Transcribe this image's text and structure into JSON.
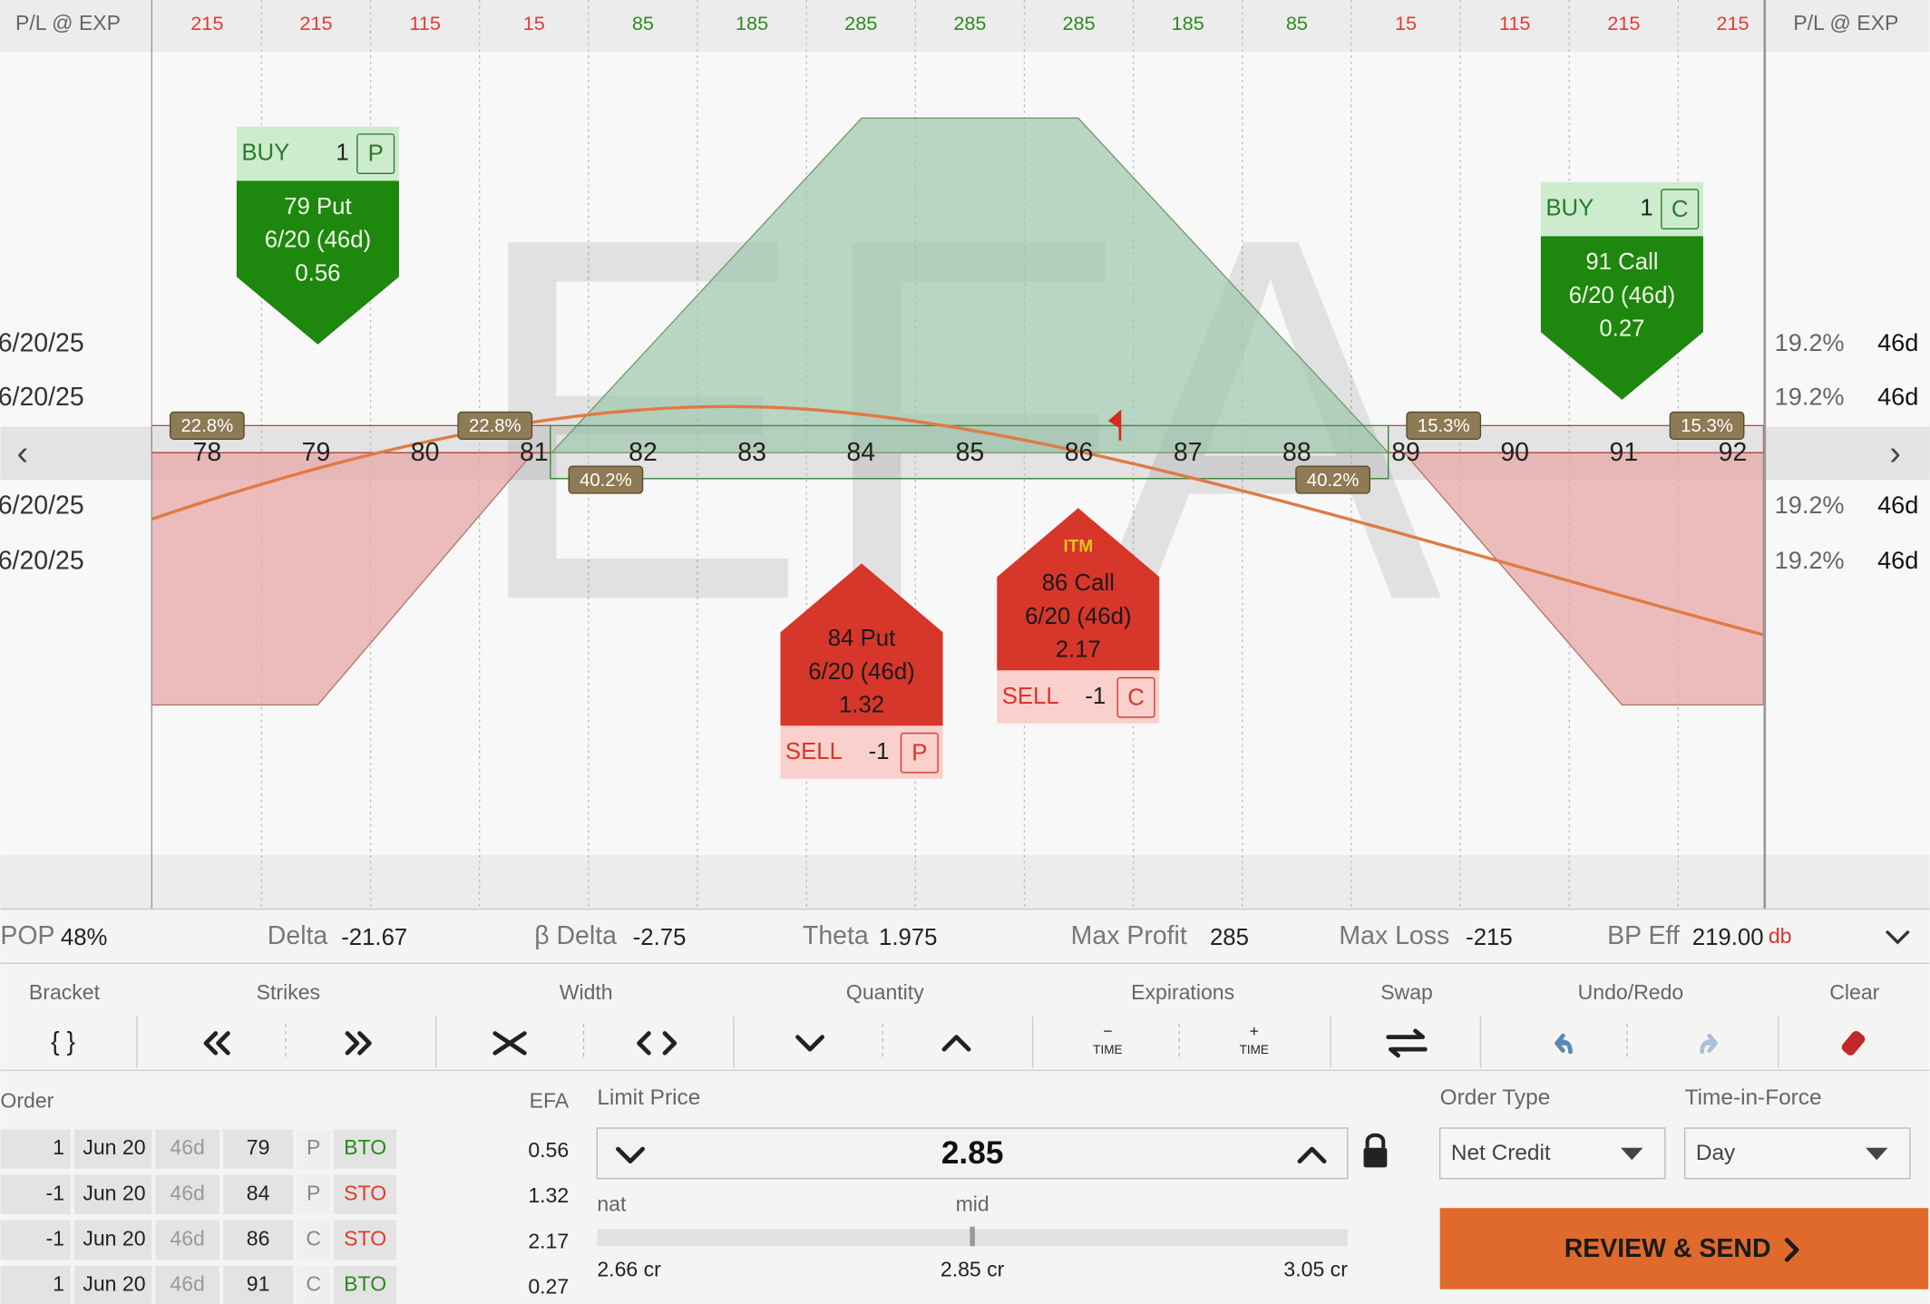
{
  "symbol": "EFA",
  "pl_header": "P/L @ EXP",
  "pl_row": [
    {
      "text": "215",
      "color": "#e53935"
    },
    {
      "text": "215",
      "color": "#e53935"
    },
    {
      "text": "115",
      "color": "#e53935"
    },
    {
      "text": "15",
      "color": "#e53935"
    },
    {
      "text": "85",
      "color": "#2e8b1e"
    },
    {
      "text": "185",
      "color": "#2e8b1e"
    },
    {
      "text": "285",
      "color": "#2e8b1e"
    },
    {
      "text": "285",
      "color": "#2e8b1e"
    },
    {
      "text": "285",
      "color": "#2e8b1e"
    },
    {
      "text": "185",
      "color": "#2e8b1e"
    },
    {
      "text": "85",
      "color": "#2e8b1e"
    },
    {
      "text": "15",
      "color": "#e53935"
    },
    {
      "text": "115",
      "color": "#e53935"
    },
    {
      "text": "215",
      "color": "#e53935"
    },
    {
      "text": "215",
      "color": "#e53935"
    }
  ],
  "strikes": [
    "78",
    "79",
    "80",
    "81",
    "82",
    "83",
    "84",
    "85",
    "86",
    "87",
    "88",
    "89",
    "90",
    "91",
    "92"
  ],
  "dates_left": [
    "6/20/25",
    "6/20/25",
    "6/20/25",
    "6/20/25"
  ],
  "iv_right": [
    "19.2%",
    "19.2%",
    "19.2%",
    "19.2%"
  ],
  "dte_right": [
    "46d",
    "46d",
    "46d",
    "46d"
  ],
  "probabilities": [
    "22.8%",
    "22.8%",
    "40.2%",
    "40.2%",
    "15.3%",
    "15.3%"
  ],
  "legs": [
    {
      "side": "BUY",
      "qty": "1",
      "type": "P",
      "title": "79 Put",
      "expiry": "6/20 (46d)",
      "price": "0.56"
    },
    {
      "side": "SELL",
      "qty": "-1",
      "type": "P",
      "title": "84 Put",
      "expiry": "6/20 (46d)",
      "price": "1.32"
    },
    {
      "side": "SELL",
      "qty": "-1",
      "type": "C",
      "title": "86 Call",
      "expiry": "6/20 (46d)",
      "price": "2.17",
      "itm": "ITM"
    },
    {
      "side": "BUY",
      "qty": "1",
      "type": "C",
      "title": "91 Call",
      "expiry": "6/20 (46d)",
      "price": "0.27"
    }
  ],
  "stats": [
    {
      "label": "POP",
      "value": "48%"
    },
    {
      "label": "Delta",
      "value": "-21.67"
    },
    {
      "label": "β Delta",
      "value": "-2.75"
    },
    {
      "label": "Theta",
      "value": "1.975"
    },
    {
      "label": "Max Profit",
      "value": "285"
    },
    {
      "label": "Max Loss",
      "value": "-215"
    },
    {
      "label": "BP Eff",
      "value": "219.00",
      "unit": "db"
    }
  ],
  "toolbar": [
    "Bracket",
    "Strikes",
    "Width",
    "Quantity",
    "Expirations",
    "Swap",
    "Undo/Redo",
    "Clear"
  ],
  "bracket_icon": "{ }",
  "time_minus": "−",
  "time_plus": "+",
  "time_label": "TIME",
  "order": {
    "header": "Order",
    "price_header": "EFA",
    "rows": [
      [
        "1",
        "Jun 20",
        "46d",
        "79",
        "P",
        "BTO",
        "0.56"
      ],
      [
        "-1",
        "Jun 20",
        "46d",
        "84",
        "P",
        "STO",
        "1.32"
      ],
      [
        "-1",
        "Jun 20",
        "46d",
        "86",
        "C",
        "STO",
        "2.17"
      ],
      [
        "1",
        "Jun 20",
        "46d",
        "91",
        "C",
        "BTO",
        "0.27"
      ]
    ]
  },
  "limit": {
    "label": "Limit Price",
    "value": "2.85",
    "nat": "nat",
    "mid": "mid",
    "low": "2.66 cr",
    "mid_value": "2.85 cr",
    "high": "3.05 cr"
  },
  "order_type": {
    "label": "Order Type",
    "value": "Net Credit"
  },
  "tif": {
    "label": "Time-in-Force",
    "value": "Day"
  },
  "button": "REVIEW & SEND"
}
